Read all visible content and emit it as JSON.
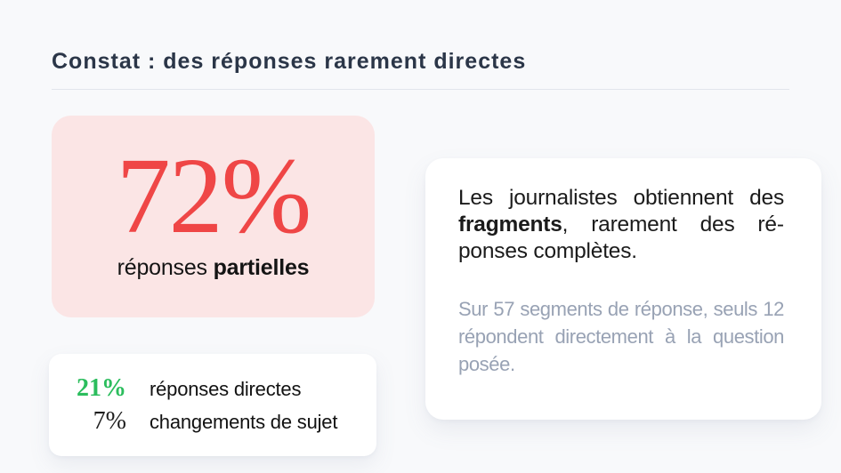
{
  "slide": {
    "title": "Constat : des réponses rarement directes",
    "colors": {
      "background": "#f8f9fb",
      "title_text": "#2b3648",
      "rule": "#e2e5ec",
      "stat_card_bg": "#fbe5e5",
      "stat_value_red": "#ef4646",
      "highlight_green": "#2bbd5d",
      "dark_text": "#1b1b1b",
      "muted_text": "#98a2b4",
      "card_bg": "#ffffff"
    }
  },
  "stat_card": {
    "value": "72%",
    "label_regular": "réponses ",
    "label_bold": "partielles"
  },
  "breakdown_card": {
    "rows": [
      {
        "value": "21%",
        "label": "réponses directes"
      },
      {
        "value": "7%",
        "label": "changements de sujet"
      }
    ]
  },
  "insight_card": {
    "p1_before": "Les journalistes obtiennent des ",
    "p1_bold": "fragments",
    "p1_after": ", rarement des ré­ponses complètes.",
    "p2": "Sur 57 segments de réponse, seuls 12 répondent directement à la question posée."
  }
}
